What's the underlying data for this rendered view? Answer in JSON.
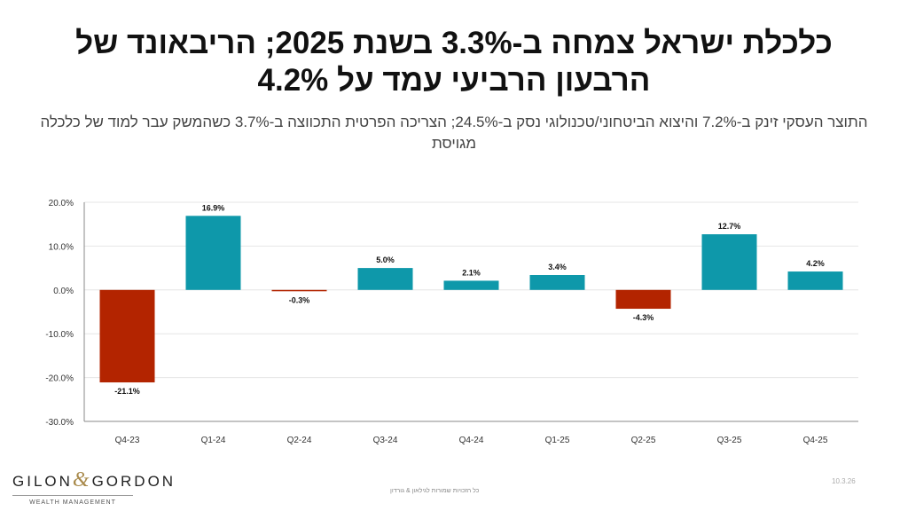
{
  "title": "כלכלת ישראל צמחה ב-3.3% בשנת 2025; הריבאונד של הרבעון הרביעי עמד על 4.2%",
  "subtitle": "התוצר העסקי זינק ב-7.2% והיצוא הביטחוני/טכנולוגי נסק ב-24.5%; הצריכה הפרטית התכווצה ב-3.7% כשהמשק עבר למוד של כלכלה מגויסת",
  "logo": {
    "name_left": "GILON",
    "amp": "&",
    "name_right": "GORDON",
    "tagline": "WEALTH MANAGEMENT"
  },
  "footer": "כל הזכויות שמורות לגילאון & גורדון",
  "date": "10.3.26",
  "colors": {
    "positive": "#0e98aa",
    "negative": "#b32400"
  },
  "chart_data": {
    "type": "bar",
    "categories": [
      "Q4-23",
      "Q1-24",
      "Q2-24",
      "Q3-24",
      "Q4-24",
      "Q1-25",
      "Q2-25",
      "Q3-25",
      "Q4-25"
    ],
    "values": [
      -21.1,
      16.9,
      -0.3,
      5.0,
      2.1,
      3.4,
      -4.3,
      12.7,
      4.2
    ],
    "data_labels": [
      "-21.1%",
      "16.9%",
      "-0.3%",
      "5.0%",
      "2.1%",
      "3.4%",
      "-4.3%",
      "12.7%",
      "4.2%"
    ],
    "yticks": [
      "20.0%",
      "10.0%",
      "0.0%",
      "-10.0%",
      "-20.0%",
      "-30.0%"
    ],
    "ytick_values": [
      20,
      10,
      0,
      -10,
      -20,
      -30
    ],
    "ylim": [
      -30,
      20
    ],
    "grid": true
  }
}
